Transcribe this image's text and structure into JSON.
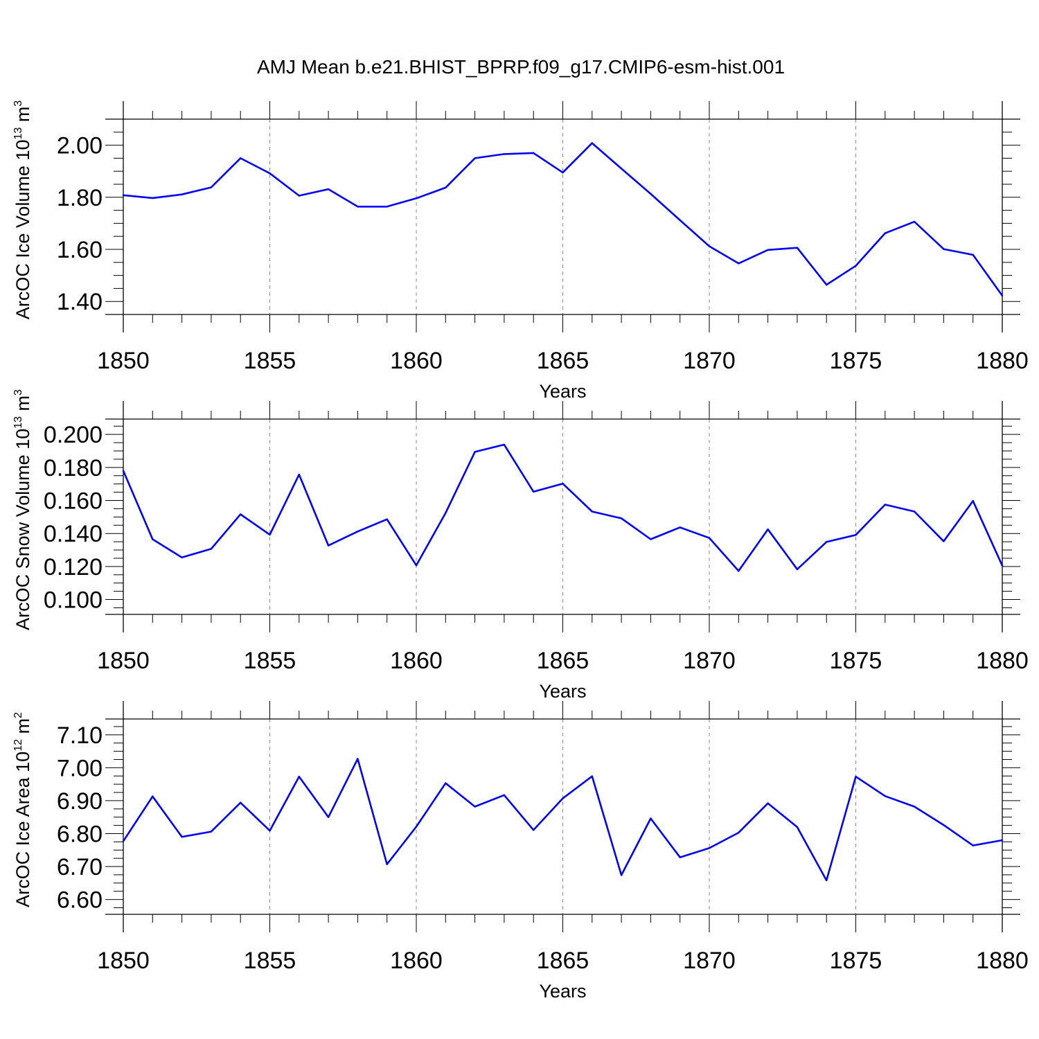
{
  "title": "AMJ Mean b.e21.BHIST_BPRP.f09_g17.CMIP6-esm-hist.001",
  "line_color": "#0000ff",
  "axis_color": "#000000",
  "grid_color": "#888888",
  "chart_data": [
    {
      "type": "line",
      "ylabel": {
        "main": "ArcOC Ice Volume 10",
        "exp": "13",
        "unit": " m",
        "unit_exp": "3"
      },
      "xlabel": "Years",
      "xlim": [
        1850,
        1880
      ],
      "ylim": [
        1.35,
        2.1
      ],
      "yticks": [
        1.4,
        1.6,
        1.8,
        2.0
      ],
      "ytick_labels": [
        "1.40",
        "1.60",
        "1.80",
        "2.00"
      ],
      "xticks": [
        1850,
        1855,
        1860,
        1865,
        1870,
        1875,
        1880
      ],
      "xtick_labels": [
        "1850",
        "1855",
        "1860",
        "1865",
        "1870",
        "1875",
        "1880"
      ],
      "grid": "vertical-dashed",
      "x": [
        1850,
        1851,
        1852,
        1853,
        1854,
        1855,
        1856,
        1857,
        1858,
        1859,
        1860,
        1861,
        1862,
        1863,
        1864,
        1865,
        1866,
        1867,
        1868,
        1869,
        1870,
        1871,
        1872,
        1873,
        1874,
        1875,
        1876,
        1877,
        1878,
        1879,
        1880
      ],
      "y": [
        1.808,
        1.797,
        1.811,
        1.838,
        1.95,
        1.892,
        1.806,
        1.831,
        1.764,
        1.764,
        1.796,
        1.837,
        1.95,
        1.966,
        1.97,
        1.895,
        2.008,
        1.91,
        1.813,
        1.712,
        1.612,
        1.546,
        1.598,
        1.606,
        1.464,
        1.537,
        1.662,
        1.706,
        1.601,
        1.579,
        1.422
      ]
    },
    {
      "type": "line",
      "ylabel": {
        "main": "ArcOC Snow Volume 10",
        "exp": "13",
        "unit": " m",
        "unit_exp": "3"
      },
      "xlabel": "Years",
      "xlim": [
        1850,
        1880
      ],
      "ylim": [
        0.091,
        0.2093
      ],
      "yticks": [
        0.1,
        0.12,
        0.14,
        0.16,
        0.18,
        0.2
      ],
      "ytick_labels": [
        "0.100",
        "0.120",
        "0.140",
        "0.160",
        "0.180",
        "0.200"
      ],
      "xticks": [
        1850,
        1855,
        1860,
        1865,
        1870,
        1875,
        1880
      ],
      "xtick_labels": [
        "1850",
        "1855",
        "1860",
        "1865",
        "1870",
        "1875",
        "1880"
      ],
      "grid": "vertical-dashed",
      "x": [
        1850,
        1851,
        1852,
        1853,
        1854,
        1855,
        1856,
        1857,
        1858,
        1859,
        1860,
        1861,
        1862,
        1863,
        1864,
        1865,
        1866,
        1867,
        1868,
        1869,
        1870,
        1871,
        1872,
        1873,
        1874,
        1875,
        1876,
        1877,
        1878,
        1879,
        1880
      ],
      "y": [
        0.178,
        0.1365,
        0.1255,
        0.1307,
        0.1516,
        0.1393,
        0.1757,
        0.1327,
        0.1412,
        0.1486,
        0.1207,
        0.1524,
        0.1894,
        0.1938,
        0.1653,
        0.1702,
        0.1533,
        0.1492,
        0.1365,
        0.1437,
        0.1373,
        0.1173,
        0.1425,
        0.1183,
        0.1349,
        0.1391,
        0.1575,
        0.1533,
        0.1353,
        0.1597,
        0.1205
      ]
    },
    {
      "type": "line",
      "ylabel": {
        "main": "ArcOC Ice Area 10",
        "exp": "12",
        "unit": " m",
        "unit_exp": "2"
      },
      "xlabel": "Years",
      "xlim": [
        1850,
        1880
      ],
      "ylim": [
        6.555,
        7.148
      ],
      "yticks": [
        6.6,
        6.7,
        6.8,
        6.9,
        7.0,
        7.1
      ],
      "ytick_labels": [
        "6.60",
        "6.70",
        "6.80",
        "6.90",
        "7.00",
        "7.10"
      ],
      "xticks": [
        1850,
        1855,
        1860,
        1865,
        1870,
        1875,
        1880
      ],
      "xtick_labels": [
        "1850",
        "1855",
        "1860",
        "1865",
        "1870",
        "1875",
        "1880"
      ],
      "grid": "vertical-dashed",
      "x": [
        1850,
        1851,
        1852,
        1853,
        1854,
        1855,
        1856,
        1857,
        1858,
        1859,
        1860,
        1861,
        1862,
        1863,
        1864,
        1865,
        1866,
        1867,
        1868,
        1869,
        1870,
        1871,
        1872,
        1873,
        1874,
        1875,
        1876,
        1877,
        1878,
        1879,
        1880
      ],
      "y": [
        6.777,
        6.913,
        6.79,
        6.806,
        6.894,
        6.809,
        6.973,
        6.85,
        7.027,
        6.707,
        6.821,
        6.953,
        6.882,
        6.917,
        6.811,
        6.907,
        6.974,
        6.674,
        6.846,
        6.728,
        6.756,
        6.803,
        6.892,
        6.82,
        6.658,
        6.973,
        6.914,
        6.882,
        6.826,
        6.764,
        6.78
      ]
    }
  ]
}
